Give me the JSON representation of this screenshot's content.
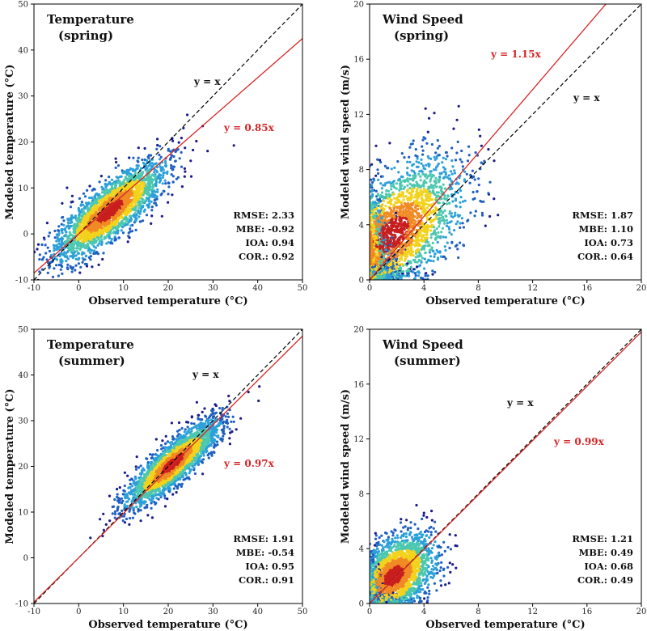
{
  "colors": {
    "identity_line": "#000000",
    "fit_line": "#d62728",
    "density_low": "#1a1a8c",
    "density_mid": "#2ca0d8",
    "density_high": "#f2d21b",
    "density_peak": "#c81e1e"
  },
  "chart_data": [
    {
      "type": "scatter",
      "id": "temp-spring",
      "title_line1": "Temperature",
      "title_line2": "(spring)",
      "xlabel": "Observed temperature (°C)",
      "ylabel": "Modeled temperature (°C)",
      "xlim": [
        -10,
        50
      ],
      "ylim": [
        -10,
        50
      ],
      "xticks": [
        -10,
        0,
        10,
        20,
        30,
        40,
        50
      ],
      "yticks": [
        -10,
        0,
        10,
        20,
        30,
        40,
        50
      ],
      "identity_label": "y = x",
      "fit_label": "y = 0.85x",
      "fit_slope": 0.85,
      "stats": [
        "RMSE: 2.33",
        "MBE: -0.92",
        "IOA: 0.94",
        "COR.: 0.92"
      ],
      "density": {
        "center": [
          7,
          5
        ],
        "spread": [
          6,
          5.2
        ],
        "rho": 0.8,
        "count": 2600,
        "seed": 11
      }
    },
    {
      "type": "scatter",
      "id": "wind-spring",
      "title_line1": "Wind Speed",
      "title_line2": "(spring)",
      "xlabel": "Observed temperature (°C)",
      "ylabel": "Modeled wind speed (m/s)",
      "xlim": [
        0,
        20
      ],
      "ylim": [
        0,
        20
      ],
      "xticks": [
        0,
        4,
        8,
        12,
        16,
        20
      ],
      "yticks": [
        0,
        4,
        8,
        12,
        16,
        20
      ],
      "identity_label": "y = x",
      "fit_label": "y = 1.15x",
      "fit_slope": 1.15,
      "stats": [
        "RMSE: 1.87",
        "MBE: 1.10",
        "IOA: 0.73",
        "COR.: 0.64"
      ],
      "density": {
        "center": [
          1.6,
          3.3
        ],
        "spread": [
          2.6,
          2.6
        ],
        "rho": 0.55,
        "count": 2600,
        "seed": 23
      }
    },
    {
      "type": "scatter",
      "id": "temp-summer",
      "title_line1": "Temperature",
      "title_line2": "(summer)",
      "xlabel": "Observed temperature (°C)",
      "ylabel": "Modeled temperature (°C)",
      "xlim": [
        -10,
        50
      ],
      "ylim": [
        -10,
        50
      ],
      "xticks": [
        -10,
        0,
        10,
        20,
        30,
        40,
        50
      ],
      "yticks": [
        -10,
        0,
        10,
        20,
        30,
        40,
        50
      ],
      "identity_label": "y = x",
      "fit_label": "y = 0.97x",
      "fit_slope": 0.97,
      "stats": [
        "RMSE: 1.91",
        "MBE: -0.54",
        "IOA: 0.95",
        "COR.: 0.91"
      ],
      "density": {
        "center": [
          21,
          20.5
        ],
        "spread": [
          5,
          4.5
        ],
        "rho": 0.85,
        "count": 2600,
        "seed": 37
      }
    },
    {
      "type": "scatter",
      "id": "wind-summer",
      "title_line1": "Wind Speed",
      "title_line2": "(summer)",
      "xlabel": "Observed temperature (°C)",
      "ylabel": "Modeled wind speed (m/s)",
      "xlim": [
        0,
        20
      ],
      "ylim": [
        0,
        20
      ],
      "xticks": [
        0,
        4,
        8,
        12,
        16,
        20
      ],
      "yticks": [
        0,
        4,
        8,
        12,
        16,
        20
      ],
      "identity_label": "y = x",
      "fit_label": "y = 0.99x",
      "fit_slope": 0.99,
      "stats": [
        "RMSE: 1.21",
        "MBE: 0.49",
        "IOA: 0.68",
        "COR.: 0.49"
      ],
      "density": {
        "center": [
          1.8,
          2.0
        ],
        "spread": [
          1.5,
          1.5
        ],
        "rho": 0.45,
        "count": 2600,
        "seed": 53
      }
    }
  ]
}
